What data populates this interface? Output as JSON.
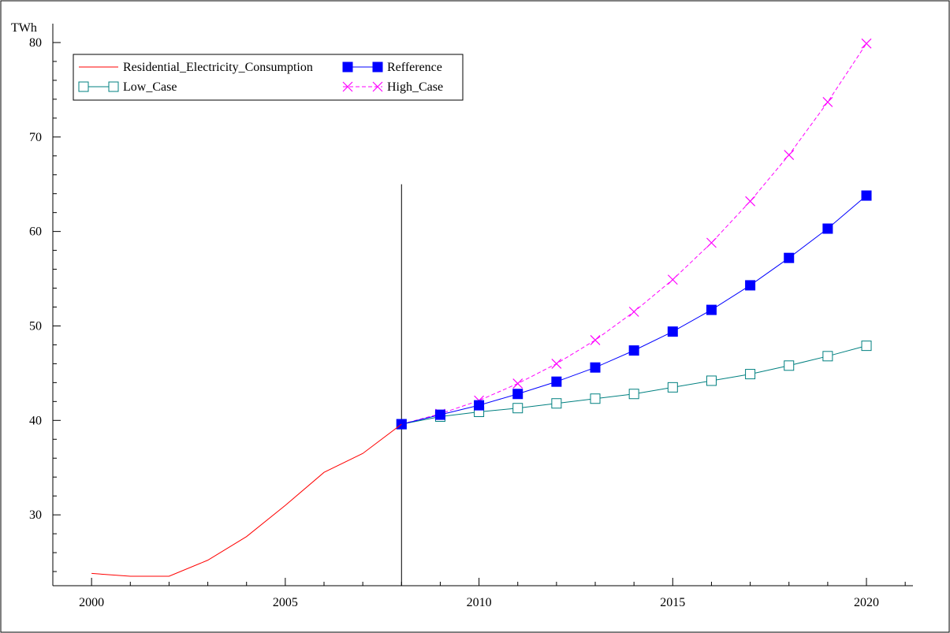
{
  "chart_data": {
    "type": "line",
    "ylabel": "TWh",
    "xlim": [
      1999,
      2021.2
    ],
    "ylim": [
      22.5,
      82
    ],
    "x_ticks": [
      2000,
      2005,
      2010,
      2015,
      2020
    ],
    "y_ticks": [
      30,
      40,
      50,
      60,
      70,
      80
    ],
    "legend_position": "top-left",
    "grid": false,
    "vertical_marker_x": 2008,
    "series": [
      {
        "name": "Residential_Electricity_Consumption",
        "color": "#ff0000",
        "line_style": "solid",
        "marker": "none",
        "x": [
          2000,
          2001,
          2002,
          2003,
          2004,
          2005,
          2006,
          2007,
          2008
        ],
        "values": [
          23.8,
          23.5,
          23.5,
          25.2,
          27.7,
          31.0,
          34.5,
          36.5,
          39.6
        ]
      },
      {
        "name": "Refference",
        "color": "#0000ff",
        "line_style": "solid",
        "marker": "filled-square",
        "x": [
          2008,
          2009,
          2010,
          2011,
          2012,
          2013,
          2014,
          2015,
          2016,
          2017,
          2018,
          2019,
          2020
        ],
        "values": [
          39.6,
          40.6,
          41.6,
          42.8,
          44.1,
          45.6,
          47.4,
          49.4,
          51.7,
          54.3,
          57.2,
          60.3,
          63.8
        ]
      },
      {
        "name": "Low_Case",
        "color": "#008080",
        "line_style": "solid",
        "marker": "hollow-square",
        "x": [
          2008,
          2009,
          2010,
          2011,
          2012,
          2013,
          2014,
          2015,
          2016,
          2017,
          2018,
          2019,
          2020
        ],
        "values": [
          39.6,
          40.4,
          40.9,
          41.3,
          41.8,
          42.3,
          42.8,
          43.5,
          44.2,
          44.9,
          45.8,
          46.8,
          47.9
        ]
      },
      {
        "name": "High_Case",
        "color": "#ff00ff",
        "line_style": "dashed",
        "marker": "x",
        "x": [
          2008,
          2009,
          2010,
          2011,
          2012,
          2013,
          2014,
          2015,
          2016,
          2017,
          2018,
          2019,
          2020
        ],
        "values": [
          39.6,
          40.7,
          42.1,
          43.9,
          46.0,
          48.5,
          51.5,
          54.9,
          58.8,
          63.2,
          68.1,
          73.7,
          79.9
        ]
      }
    ]
  }
}
